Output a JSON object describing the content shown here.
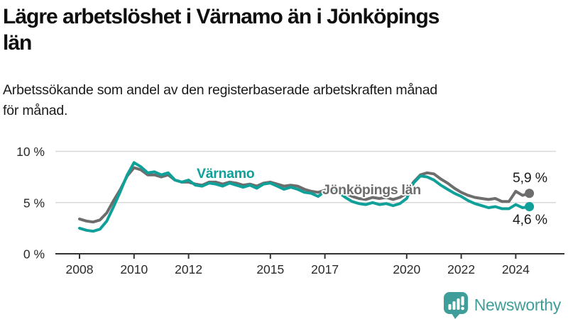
{
  "header": {
    "title_line1": "Lägre arbetslöshet i Värnamo än i Jönköpings",
    "title_line2": "län",
    "subtitle_line1": "Arbetssökande som andel av den registerbaserade arbetskraften månad",
    "subtitle_line2": "för månad."
  },
  "chart_data": {
    "type": "line",
    "title": "Lägre arbetslöshet i Värnamo än i Jönköpings län",
    "subtitle": "Arbetssökande som andel av den registerbaserade arbetskraften månad för månad.",
    "x_start": 2008.0,
    "x_step": 0.25,
    "x_unit": "year, monthly observations",
    "xlim": [
      2007.1,
      2025.6
    ],
    "ylim": [
      0,
      10
    ],
    "grid": "horizontal",
    "x_ticks": [
      2008,
      2010,
      2012,
      2015,
      2017,
      2020,
      2022,
      2024
    ],
    "y_ticks": [
      {
        "value": 0,
        "label": "0 %"
      },
      {
        "value": 5,
        "label": "5 %"
      },
      {
        "value": 10,
        "label": "10 %"
      }
    ],
    "axis_color": "#333333",
    "grid_color": "#d8d8d8",
    "tick_text_color": "#2a2a2a",
    "series": [
      {
        "name": "Jönköpings län",
        "color": "#6d6d6d",
        "end_label": "5,9 %",
        "end_value": 5.9,
        "values": [
          3.4,
          3.2,
          3.1,
          3.3,
          4.0,
          5.2,
          6.3,
          7.6,
          8.4,
          8.2,
          7.7,
          7.7,
          7.5,
          7.7,
          7.2,
          7.0,
          7.0,
          6.8,
          6.7,
          7.0,
          7.0,
          6.8,
          7.0,
          6.9,
          6.7,
          6.8,
          6.6,
          6.9,
          7.0,
          6.8,
          6.6,
          6.7,
          6.6,
          6.3,
          6.1,
          6.0,
          6.2,
          6.5,
          6.3,
          5.9,
          5.6,
          5.4,
          5.3,
          5.5,
          5.4,
          5.5,
          5.3,
          5.5,
          5.9,
          7.0,
          7.7,
          7.9,
          7.8,
          7.3,
          6.9,
          6.4,
          6.0,
          5.7,
          5.5,
          5.4,
          5.3,
          5.4,
          5.1,
          5.1,
          6.1,
          5.7,
          5.9
        ]
      },
      {
        "name": "Värnamo",
        "color": "#0fa199",
        "end_label": "4,6 %",
        "end_value": 4.6,
        "values": [
          2.5,
          2.3,
          2.2,
          2.4,
          3.2,
          4.6,
          6.1,
          7.7,
          8.9,
          8.5,
          7.9,
          8.0,
          7.7,
          7.9,
          7.2,
          7.0,
          7.2,
          6.7,
          6.6,
          6.9,
          6.8,
          6.6,
          6.9,
          6.7,
          6.5,
          6.7,
          6.4,
          6.8,
          6.9,
          6.6,
          6.3,
          6.5,
          6.3,
          6.0,
          5.9,
          5.6,
          6.1,
          6.3,
          6.0,
          5.5,
          5.1,
          4.9,
          4.8,
          5.0,
          4.8,
          4.9,
          4.7,
          4.9,
          5.4,
          6.9,
          7.6,
          7.5,
          7.2,
          6.7,
          6.3,
          5.9,
          5.6,
          5.2,
          4.9,
          4.7,
          4.5,
          4.6,
          4.4,
          4.4,
          4.8,
          4.5,
          4.6
        ]
      }
    ]
  },
  "footer": {
    "brand": "Newsworthy",
    "brand_color": "#3f9e99",
    "logo_icon": "bar-chart-speech-bubble-icon"
  }
}
